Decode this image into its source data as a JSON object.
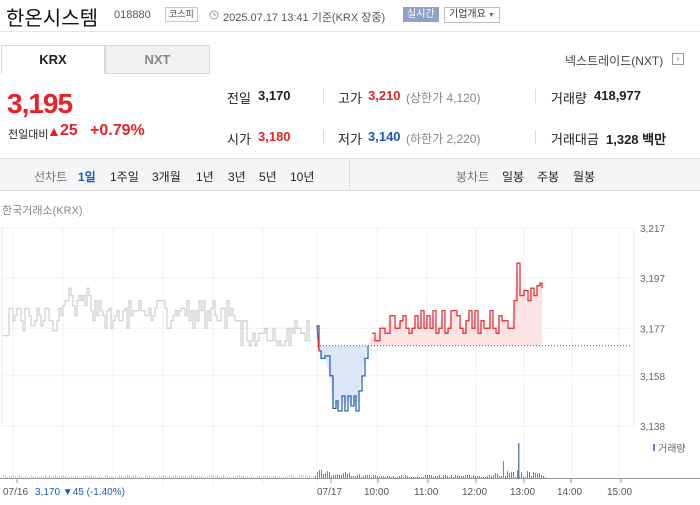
{
  "header": {
    "name": "한온시스템",
    "code": "018880",
    "market": "코스피",
    "timestamp": "2025.07.17 13:41 기준(KRX 장중)",
    "realtime_button": "실시간",
    "company_button": "기업개요"
  },
  "tabs": {
    "krx": "KRX",
    "nxt": "NXT"
  },
  "nxt_link": "넥스트레이드(NXT)",
  "quote": {
    "price": "3,195",
    "change_label": "전일대비",
    "change": "25",
    "change_pct": "+0.79%",
    "prev_label": "전일",
    "prev": "3,170",
    "high_label": "고가",
    "high": "3,210",
    "upper_limit": "(상한가 4,120)",
    "volume_label": "거래량",
    "volume": "418,977",
    "open_label": "시가",
    "open": "3,180",
    "low_label": "저가",
    "low": "3,140",
    "lower_limit": "(하한가 2,220)",
    "value_label": "거래대금",
    "value": "1,328 백만"
  },
  "periods": {
    "line_label": "선차트",
    "items": [
      "1일",
      "1주일",
      "3개월",
      "1년",
      "3년",
      "5년",
      "10년"
    ],
    "active": "1일",
    "candle_label": "봉차트",
    "candle_items": [
      "일봉",
      "주봉",
      "월봉"
    ]
  },
  "chart_data": {
    "type": "line",
    "title": "한국거래소(KRX)",
    "ylim": [
      3138,
      3217
    ],
    "y_ticks": [
      "3,217",
      "3,197",
      "3,177",
      "3,158",
      "3,138"
    ],
    "x_ticks": [
      "07/16",
      "07/17",
      "10:00",
      "11:00",
      "12:00",
      "13:00",
      "14:00",
      "15:00"
    ],
    "prev_close": 3170,
    "prev_close_label": "3,170",
    "prev_change": "45",
    "prev_change_pct": "(-1.40%)",
    "volume_label": "거래량",
    "colors": {
      "prev_day": "#c4c4c4",
      "up": "#e8212a",
      "down": "#1a59b8",
      "up_fill": "#fde4e4",
      "down_fill": "#dde6f7"
    }
  }
}
